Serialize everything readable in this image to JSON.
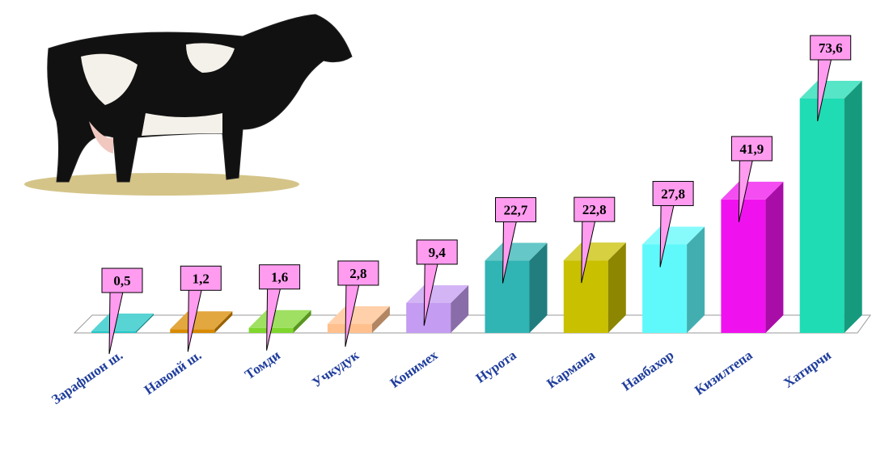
{
  "chart_data": {
    "type": "bar3d",
    "categories": [
      "Зарафшон ш.",
      "Навоий ш.",
      "Томди",
      "Учкудук",
      "Конимех",
      "Нурота",
      "Кармана",
      "Навбахор",
      "Кизилтепа",
      "Хатирчи"
    ],
    "values": [
      0.5,
      1.2,
      1.6,
      2.8,
      9.4,
      22.7,
      22.8,
      27.8,
      41.9,
      73.6
    ],
    "value_labels": [
      "0,5",
      "1,2",
      "1,6",
      "2,8",
      "9,4",
      "22,7",
      "22,8",
      "27,8",
      "41,9",
      "73,6"
    ],
    "colors": [
      "#22c6c6",
      "#d98a00",
      "#7fd62e",
      "#ffc08e",
      "#c49cf2",
      "#31b4b4",
      "#c9c000",
      "#5ff9fb",
      "#f012ee",
      "#1fdcb4"
    ]
  }
}
